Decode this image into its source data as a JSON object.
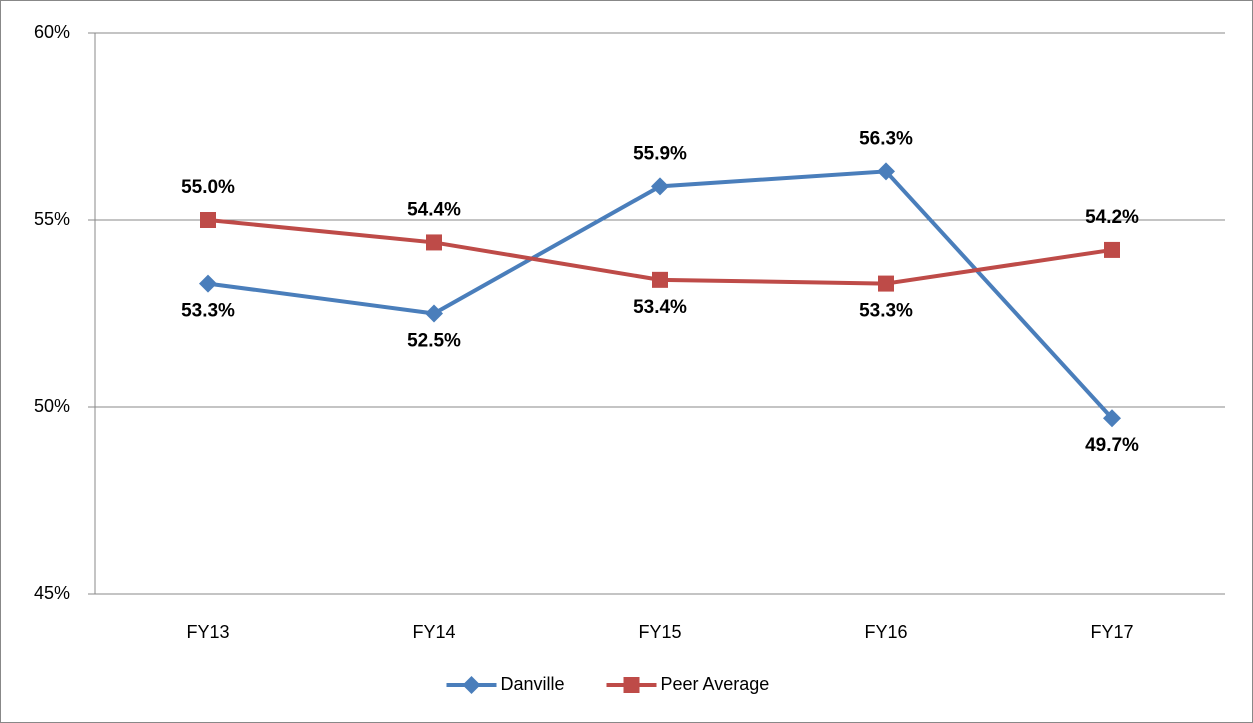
{
  "chart_data": {
    "type": "line",
    "categories": [
      "FY13",
      "FY14",
      "FY15",
      "FY16",
      "FY17"
    ],
    "series": [
      {
        "name": "Danville",
        "color": "#4a7ebb",
        "marker": "diamond",
        "values": [
          53.3,
          52.5,
          55.9,
          56.3,
          49.7
        ],
        "value_labels": [
          "53.3%",
          "52.5%",
          "55.9%",
          "56.3%",
          "49.7%"
        ]
      },
      {
        "name": "Peer Average",
        "color": "#be4b48",
        "marker": "square",
        "values": [
          55.0,
          54.4,
          53.4,
          53.3,
          54.2
        ],
        "value_labels": [
          "55.0%",
          "54.4%",
          "53.4%",
          "53.3%",
          "54.2%"
        ]
      }
    ],
    "ylim": [
      45,
      60
    ],
    "yticks": [
      {
        "value": 45,
        "label": "45%"
      },
      {
        "value": 50,
        "label": "50%"
      },
      {
        "value": 55,
        "label": "55%"
      },
      {
        "value": 60,
        "label": "60%"
      }
    ],
    "grid": true,
    "legend": "bottom"
  }
}
